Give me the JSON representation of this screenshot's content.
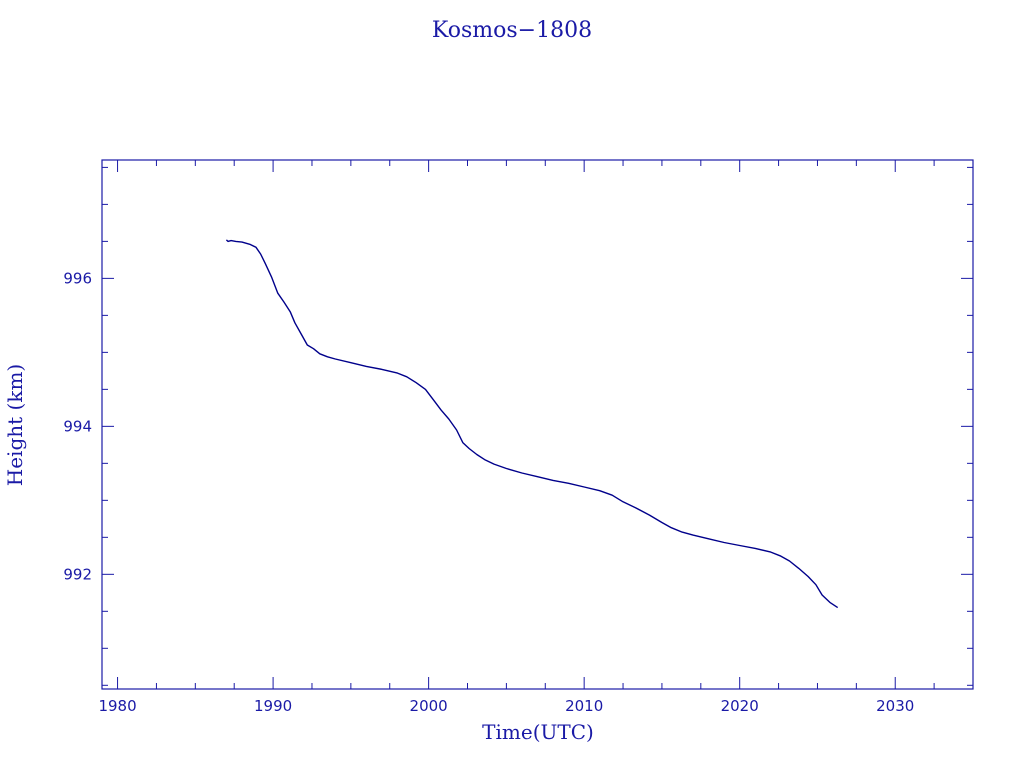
{
  "chart_data": {
    "type": "line",
    "title": "Kosmos−1808",
    "xlabel": "Time(UTC)",
    "ylabel": "Height (km)",
    "xlim": [
      1979,
      2035
    ],
    "ylim": [
      990.45,
      997.6
    ],
    "x_ticks": [
      1980,
      1990,
      2000,
      2010,
      2020,
      2030
    ],
    "x_minor_step": 2.5,
    "y_ticks": [
      992,
      994,
      996
    ],
    "y_minor_step": 0.5,
    "grid": false,
    "colors": {
      "axis": "#1a1aa6",
      "line": "#00008b"
    },
    "series": [
      {
        "x": [
          1987.0,
          1987.1,
          1987.3,
          1987.6,
          1988.0,
          1988.5,
          1988.9,
          1989.2,
          1989.5,
          1989.9,
          1990.3,
          1990.7,
          1991.1,
          1991.4,
          1991.8,
          1992.2,
          1992.6,
          1993.0,
          1993.5,
          1994.0,
          1995.0,
          1996.0,
          1997.0,
          1998.0,
          1998.6,
          1999.2,
          1999.8,
          2000.3,
          2000.8,
          2001.3,
          2001.8,
          2002.2,
          2002.6,
          2003.1,
          2003.6,
          2004.2,
          2005.0,
          2006.0,
          2007.0,
          2008.0,
          2009.0,
          2010.0,
          2011.0,
          2011.8,
          2012.5,
          2013.3,
          2014.2,
          2015.0,
          2015.6,
          2016.3,
          2017.0,
          2018.0,
          2019.0,
          2020.0,
          2021.0,
          2022.0,
          2022.6,
          2023.2,
          2023.8,
          2024.4,
          2024.9,
          2025.3,
          2025.8,
          2026.3
        ],
        "y": [
          996.52,
          996.5,
          996.51,
          996.5,
          996.49,
          996.46,
          996.42,
          996.33,
          996.2,
          996.02,
          995.8,
          995.68,
          995.55,
          995.4,
          995.25,
          995.1,
          995.05,
          994.98,
          994.94,
          994.91,
          994.86,
          994.81,
          994.77,
          994.72,
          994.67,
          994.59,
          994.5,
          994.36,
          994.22,
          994.1,
          993.95,
          993.78,
          993.7,
          993.62,
          993.55,
          993.49,
          993.43,
          993.37,
          993.32,
          993.27,
          993.23,
          993.18,
          993.13,
          993.07,
          992.98,
          992.9,
          992.8,
          992.7,
          992.63,
          992.57,
          992.53,
          992.48,
          992.43,
          992.39,
          992.35,
          992.3,
          992.25,
          992.18,
          992.08,
          991.97,
          991.86,
          991.72,
          991.62,
          991.55
        ]
      }
    ]
  }
}
